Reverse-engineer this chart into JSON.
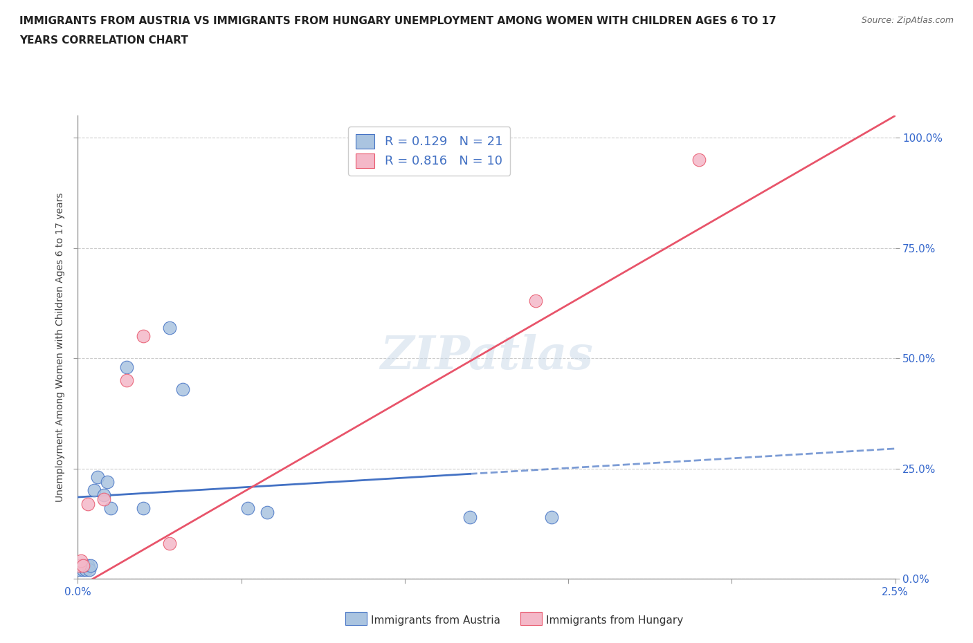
{
  "title_line1": "IMMIGRANTS FROM AUSTRIA VS IMMIGRANTS FROM HUNGARY UNEMPLOYMENT AMONG WOMEN WITH CHILDREN AGES 6 TO 17",
  "title_line2": "YEARS CORRELATION CHART",
  "source": "Source: ZipAtlas.com",
  "ylabel": "Unemployment Among Women with Children Ages 6 to 17 years",
  "xlim": [
    0.0,
    0.025
  ],
  "ylim": [
    0.0,
    1.05
  ],
  "xticks": [
    0.0,
    0.005,
    0.01,
    0.015,
    0.02,
    0.025
  ],
  "xticklabels": [
    "0.0%",
    "",
    "",
    "",
    "",
    "2.5%"
  ],
  "yticks": [
    0.0,
    0.25,
    0.5,
    0.75,
    1.0
  ],
  "yticklabels": [
    "0.0%",
    "25.0%",
    "50.0%",
    "75.0%",
    "100.0%"
  ],
  "austria_x": [
    5e-05,
    0.0001,
    0.00015,
    0.0002,
    0.00025,
    0.0003,
    0.00035,
    0.0004,
    0.0005,
    0.0006,
    0.0008,
    0.0009,
    0.001,
    0.0015,
    0.002,
    0.0028,
    0.0032,
    0.0052,
    0.0058,
    0.012,
    0.0145
  ],
  "austria_y": [
    0.02,
    0.03,
    0.02,
    0.03,
    0.02,
    0.03,
    0.02,
    0.03,
    0.2,
    0.23,
    0.19,
    0.22,
    0.16,
    0.48,
    0.16,
    0.57,
    0.43,
    0.16,
    0.15,
    0.14,
    0.14
  ],
  "hungary_x": [
    5e-05,
    0.0001,
    0.00015,
    0.0003,
    0.0008,
    0.0015,
    0.002,
    0.0028,
    0.014,
    0.019
  ],
  "hungary_y": [
    0.03,
    0.04,
    0.03,
    0.17,
    0.18,
    0.45,
    0.55,
    0.08,
    0.63,
    0.95
  ],
  "austria_color": "#aac4e0",
  "hungary_color": "#f4b8c8",
  "austria_line_color": "#4472c4",
  "hungary_line_color": "#e8546a",
  "austria_R": 0.129,
  "austria_N": 21,
  "hungary_R": 0.816,
  "hungary_N": 10,
  "austria_line_x0": 0.0,
  "austria_line_y0": 0.185,
  "austria_line_x1": 0.025,
  "austria_line_y1": 0.295,
  "hungary_line_x0": 0.0,
  "hungary_line_y0": -0.02,
  "hungary_line_x1": 0.025,
  "hungary_line_y1": 1.05,
  "watermark": "ZIPatlas",
  "background_color": "#ffffff",
  "grid_color": "#cccccc"
}
